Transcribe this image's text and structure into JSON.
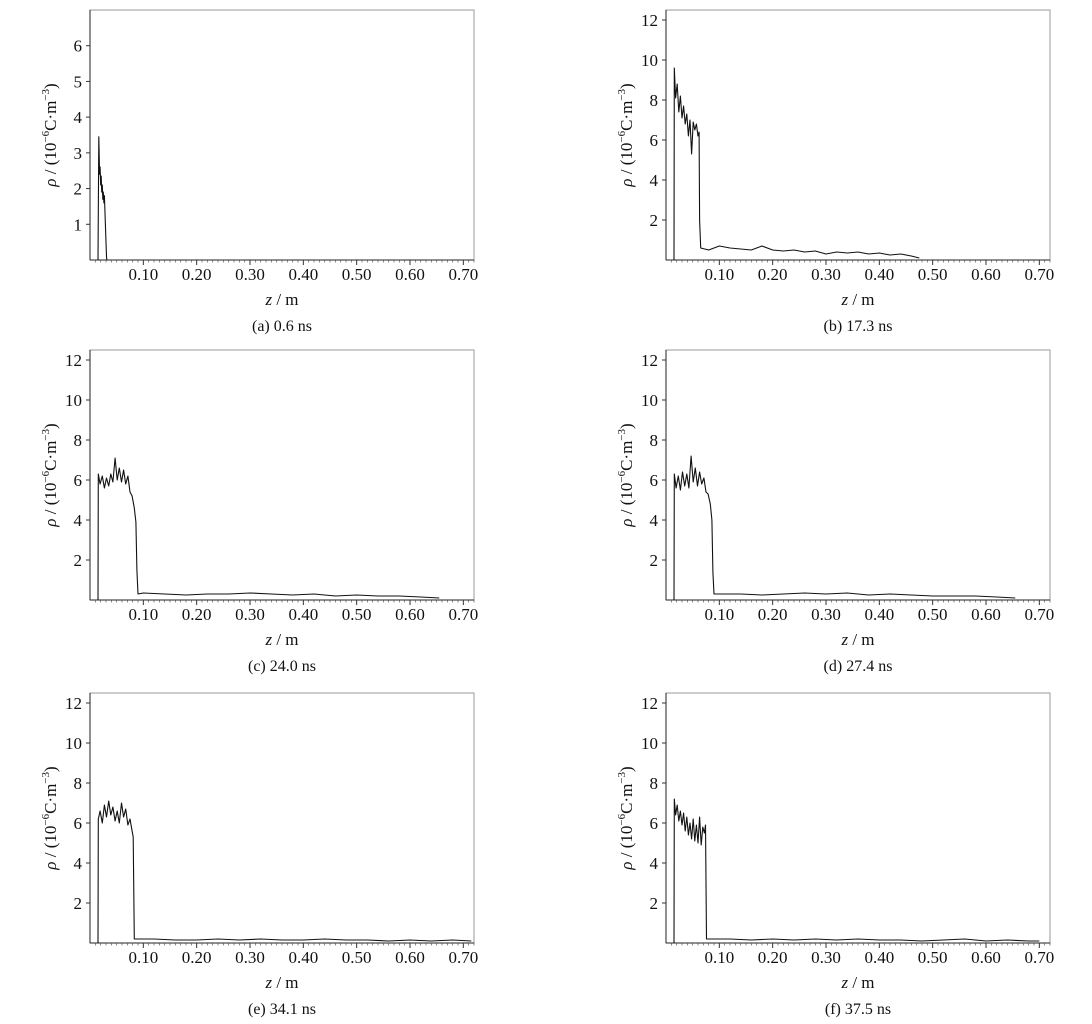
{
  "chart_data": [
    {
      "id": "a",
      "type": "line",
      "caption": "(a) 0.6 ns",
      "xlabel_var": "z",
      "xlabel_unit": " / m",
      "ylabel_var": "ρ",
      "ylabel_unit": " / (10",
      "ylabel_exp1": "−6",
      "ylabel_mid": "C·m",
      "ylabel_exp2": "−3",
      "ylabel_end": ")",
      "xlim": [
        0.0,
        0.72
      ],
      "ylim": [
        0,
        7
      ],
      "xticks": [
        0.1,
        0.2,
        0.3,
        0.4,
        0.5,
        0.6,
        0.7
      ],
      "xtick_labels": [
        "0.10",
        "0.20",
        "0.30",
        "0.40",
        "0.50",
        "0.60",
        "0.70"
      ],
      "yticks": [
        1,
        2,
        3,
        4,
        5,
        6
      ],
      "ytick_labels": [
        "1",
        "2",
        "3",
        "4",
        "5",
        "6"
      ],
      "series": [
        {
          "x": [
            0.015,
            0.0165,
            0.018,
            0.019,
            0.02,
            0.021,
            0.022,
            0.023,
            0.024,
            0.025,
            0.026,
            0.027,
            0.028,
            0.03,
            0.031,
            0.0315
          ],
          "y": [
            0,
            3.45,
            2.4,
            2.6,
            2.1,
            2.35,
            1.9,
            2.1,
            1.7,
            1.9,
            1.6,
            1.8,
            1.4,
            0.5,
            0.1,
            0
          ]
        }
      ]
    },
    {
      "id": "b",
      "type": "line",
      "caption": "(b) 17.3 ns",
      "xlabel_var": "z",
      "xlabel_unit": " / m",
      "ylabel_var": "ρ",
      "ylabel_unit": " / (10",
      "ylabel_exp1": "−6",
      "ylabel_mid": "C·m",
      "ylabel_exp2": "−3",
      "ylabel_end": ")",
      "xlim": [
        0.0,
        0.72
      ],
      "ylim": [
        0,
        12.5
      ],
      "xticks": [
        0.1,
        0.2,
        0.3,
        0.4,
        0.5,
        0.6,
        0.7
      ],
      "xtick_labels": [
        "0.10",
        "0.20",
        "0.30",
        "0.40",
        "0.50",
        "0.60",
        "0.70"
      ],
      "yticks": [
        2,
        4,
        6,
        8,
        10,
        12
      ],
      "ytick_labels": [
        "2",
        "4",
        "6",
        "8",
        "10",
        "12"
      ],
      "series": [
        {
          "x": [
            0.015,
            0.0155,
            0.018,
            0.021,
            0.024,
            0.027,
            0.03,
            0.033,
            0.036,
            0.039,
            0.042,
            0.045,
            0.048,
            0.051,
            0.054,
            0.057,
            0.06,
            0.062,
            0.063,
            0.065,
            0.08,
            0.1,
            0.12,
            0.14,
            0.16,
            0.18,
            0.2,
            0.22,
            0.24,
            0.26,
            0.28,
            0.3,
            0.32,
            0.34,
            0.36,
            0.38,
            0.4,
            0.42,
            0.44,
            0.46,
            0.475
          ],
          "y": [
            0,
            9.6,
            8.1,
            8.8,
            7.4,
            8.2,
            7.1,
            7.7,
            6.8,
            7.3,
            6.2,
            7.0,
            5.3,
            6.9,
            6.5,
            6.8,
            6.2,
            6.4,
            2.0,
            0.6,
            0.5,
            0.7,
            0.6,
            0.55,
            0.5,
            0.7,
            0.5,
            0.45,
            0.5,
            0.4,
            0.45,
            0.3,
            0.4,
            0.35,
            0.4,
            0.3,
            0.35,
            0.25,
            0.3,
            0.2,
            0.1
          ]
        }
      ]
    },
    {
      "id": "c",
      "type": "line",
      "caption": "(c) 24.0 ns",
      "xlabel_var": "z",
      "xlabel_unit": " / m",
      "ylabel_var": "ρ",
      "ylabel_unit": " / (10",
      "ylabel_exp1": "−6",
      "ylabel_mid": "C·m",
      "ylabel_exp2": "−3",
      "ylabel_end": ")",
      "xlim": [
        0.0,
        0.72
      ],
      "ylim": [
        0,
        12.5
      ],
      "xticks": [
        0.1,
        0.2,
        0.3,
        0.4,
        0.5,
        0.6,
        0.7
      ],
      "xtick_labels": [
        "0.10",
        "0.20",
        "0.30",
        "0.40",
        "0.50",
        "0.60",
        "0.70"
      ],
      "yticks": [
        2,
        4,
        6,
        8,
        10,
        12
      ],
      "ytick_labels": [
        "2",
        "4",
        "6",
        "8",
        "10",
        "12"
      ],
      "series": [
        {
          "x": [
            0.015,
            0.0155,
            0.019,
            0.023,
            0.027,
            0.031,
            0.035,
            0.039,
            0.043,
            0.047,
            0.051,
            0.055,
            0.059,
            0.063,
            0.067,
            0.071,
            0.075,
            0.079,
            0.083,
            0.086,
            0.088,
            0.09,
            0.1,
            0.14,
            0.18,
            0.22,
            0.26,
            0.3,
            0.34,
            0.38,
            0.42,
            0.46,
            0.5,
            0.54,
            0.58,
            0.62,
            0.655
          ],
          "y": [
            0,
            6.3,
            5.8,
            6.2,
            5.6,
            6.1,
            5.7,
            6.3,
            5.9,
            7.1,
            6.0,
            6.6,
            5.9,
            6.5,
            5.8,
            6.2,
            5.4,
            5.2,
            4.6,
            3.9,
            1.5,
            0.3,
            0.35,
            0.3,
            0.25,
            0.3,
            0.3,
            0.35,
            0.3,
            0.25,
            0.3,
            0.2,
            0.25,
            0.2,
            0.2,
            0.15,
            0.1
          ]
        }
      ]
    },
    {
      "id": "d",
      "type": "line",
      "caption": "(d) 27.4 ns",
      "xlabel_var": "z",
      "xlabel_unit": " / m",
      "ylabel_var": "ρ",
      "ylabel_unit": " / (10",
      "ylabel_exp1": "−6",
      "ylabel_mid": "C·m",
      "ylabel_exp2": "−3",
      "ylabel_end": ")",
      "xlim": [
        0.0,
        0.72
      ],
      "ylim": [
        0,
        12.5
      ],
      "xticks": [
        0.1,
        0.2,
        0.3,
        0.4,
        0.5,
        0.6,
        0.7
      ],
      "xtick_labels": [
        "0.10",
        "0.20",
        "0.30",
        "0.40",
        "0.50",
        "0.60",
        "0.70"
      ],
      "yticks": [
        2,
        4,
        6,
        8,
        10,
        12
      ],
      "ytick_labels": [
        "2",
        "4",
        "6",
        "8",
        "10",
        "12"
      ],
      "series": [
        {
          "x": [
            0.015,
            0.0155,
            0.019,
            0.023,
            0.027,
            0.031,
            0.035,
            0.039,
            0.043,
            0.047,
            0.051,
            0.055,
            0.059,
            0.063,
            0.067,
            0.071,
            0.075,
            0.079,
            0.083,
            0.086,
            0.088,
            0.09,
            0.1,
            0.14,
            0.18,
            0.22,
            0.26,
            0.3,
            0.34,
            0.38,
            0.42,
            0.46,
            0.5,
            0.54,
            0.58,
            0.62,
            0.655
          ],
          "y": [
            0,
            6.3,
            5.6,
            6.2,
            5.5,
            6.4,
            5.7,
            6.3,
            5.6,
            7.2,
            5.9,
            6.6,
            5.7,
            6.4,
            5.8,
            6.1,
            5.4,
            5.3,
            4.8,
            4.0,
            1.4,
            0.3,
            0.3,
            0.3,
            0.25,
            0.3,
            0.35,
            0.3,
            0.35,
            0.25,
            0.3,
            0.25,
            0.2,
            0.2,
            0.2,
            0.15,
            0.1
          ]
        }
      ]
    },
    {
      "id": "e",
      "type": "line",
      "caption": "(e) 34.1 ns",
      "xlabel_var": "z",
      "xlabel_unit": " / m",
      "ylabel_var": "ρ",
      "ylabel_unit": " / (10",
      "ylabel_exp1": "−6",
      "ylabel_mid": "C·m",
      "ylabel_exp2": "−3",
      "ylabel_end": ")",
      "xlim": [
        0.0,
        0.72
      ],
      "ylim": [
        0,
        12.5
      ],
      "xticks": [
        0.1,
        0.2,
        0.3,
        0.4,
        0.5,
        0.6,
        0.7
      ],
      "xtick_labels": [
        "0.10",
        "0.20",
        "0.30",
        "0.40",
        "0.50",
        "0.60",
        "0.70"
      ],
      "yticks": [
        2,
        4,
        6,
        8,
        10,
        12
      ],
      "ytick_labels": [
        "2",
        "4",
        "6",
        "8",
        "10",
        "12"
      ],
      "series": [
        {
          "x": [
            0.015,
            0.0155,
            0.019,
            0.023,
            0.027,
            0.031,
            0.035,
            0.039,
            0.043,
            0.047,
            0.051,
            0.055,
            0.059,
            0.063,
            0.067,
            0.071,
            0.075,
            0.079,
            0.081,
            0.083,
            0.09,
            0.12,
            0.16,
            0.2,
            0.24,
            0.28,
            0.32,
            0.36,
            0.4,
            0.44,
            0.48,
            0.52,
            0.56,
            0.6,
            0.64,
            0.68,
            0.715
          ],
          "y": [
            0,
            6.2,
            6.6,
            6.0,
            6.9,
            6.3,
            7.1,
            6.4,
            6.8,
            6.1,
            6.6,
            6.0,
            7.0,
            6.3,
            6.7,
            5.9,
            6.2,
            5.6,
            5.3,
            0.2,
            0.2,
            0.2,
            0.15,
            0.15,
            0.2,
            0.15,
            0.2,
            0.15,
            0.15,
            0.2,
            0.15,
            0.15,
            0.1,
            0.15,
            0.1,
            0.15,
            0.1
          ]
        }
      ]
    },
    {
      "id": "f",
      "type": "line",
      "caption": "(f) 37.5 ns",
      "xlabel_var": "z",
      "xlabel_unit": " / m",
      "ylabel_var": "ρ",
      "ylabel_unit": " / (10",
      "ylabel_exp1": "−6",
      "ylabel_mid": "C·m",
      "ylabel_exp2": "−3",
      "ylabel_end": ")",
      "xlim": [
        0.0,
        0.72
      ],
      "ylim": [
        0,
        12.5
      ],
      "xticks": [
        0.1,
        0.2,
        0.3,
        0.4,
        0.5,
        0.6,
        0.7
      ],
      "xtick_labels": [
        "0.10",
        "0.20",
        "0.30",
        "0.40",
        "0.50",
        "0.60",
        "0.70"
      ],
      "yticks": [
        2,
        4,
        6,
        8,
        10,
        12
      ],
      "ytick_labels": [
        "2",
        "4",
        "6",
        "8",
        "10",
        "12"
      ],
      "series": [
        {
          "x": [
            0.015,
            0.0155,
            0.018,
            0.021,
            0.024,
            0.027,
            0.03,
            0.033,
            0.036,
            0.039,
            0.042,
            0.045,
            0.048,
            0.051,
            0.054,
            0.057,
            0.06,
            0.063,
            0.066,
            0.069,
            0.072,
            0.074,
            0.076,
            0.085,
            0.12,
            0.16,
            0.2,
            0.24,
            0.28,
            0.32,
            0.36,
            0.4,
            0.44,
            0.48,
            0.52,
            0.56,
            0.6,
            0.64,
            0.68,
            0.7
          ],
          "y": [
            0,
            7.2,
            6.4,
            6.9,
            6.1,
            6.6,
            5.9,
            6.5,
            5.6,
            6.3,
            5.4,
            6.0,
            5.2,
            6.2,
            5.1,
            5.9,
            5.0,
            6.3,
            4.9,
            5.8,
            5.5,
            5.9,
            0.2,
            0.2,
            0.2,
            0.15,
            0.2,
            0.15,
            0.2,
            0.15,
            0.2,
            0.15,
            0.15,
            0.1,
            0.15,
            0.2,
            0.1,
            0.15,
            0.1,
            0.1
          ]
        }
      ]
    }
  ]
}
